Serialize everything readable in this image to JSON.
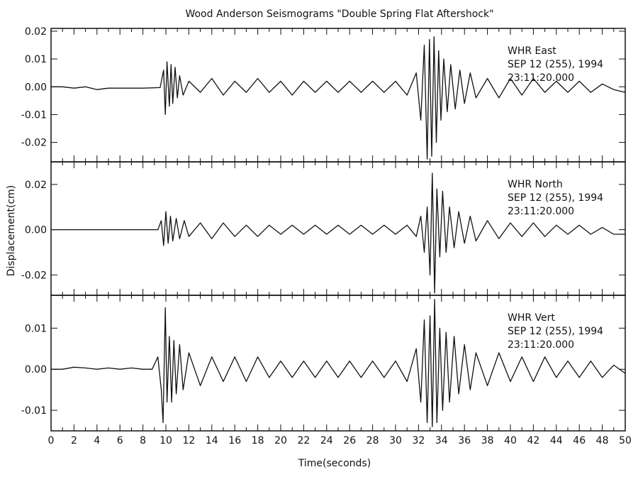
{
  "chart_data": [
    {
      "type": "line",
      "title": "Wood Anderson Seismograms \"Double Spring Flat Aftershock\"",
      "station_line": "WHR   East",
      "date_line": "SEP 12 (255), 1994",
      "time_line": "23:11:20.000",
      "ylabel": "",
      "xlabel": "",
      "xlim": [
        0,
        50
      ],
      "ylim": [
        -0.027,
        0.021
      ],
      "yticks": [
        0.02,
        0.01,
        0.0,
        -0.01,
        -0.02
      ],
      "ytick_labels": [
        "0.02",
        "0.01",
        "0.00",
        "-0.01",
        "-0.02"
      ],
      "grid": false,
      "series": [
        {
          "x": [
            0,
            1,
            2,
            3,
            4,
            5,
            6,
            7,
            8,
            9.5,
            9.8,
            9.95,
            10.1,
            10.3,
            10.45,
            10.6,
            10.8,
            11.0,
            11.2,
            11.5,
            12,
            13,
            14,
            15,
            16,
            17,
            18,
            19,
            20,
            21,
            22,
            23,
            24,
            25,
            26,
            27,
            28,
            29,
            30,
            31,
            31.8,
            32.2,
            32.5,
            32.75,
            32.95,
            33.15,
            33.35,
            33.55,
            33.75,
            33.95,
            34.2,
            34.5,
            34.8,
            35.2,
            35.6,
            36,
            36.5,
            37,
            38,
            39,
            40,
            41,
            42,
            43,
            44,
            45,
            46,
            47,
            48,
            49,
            50
          ],
          "y": [
            0.0,
            0.0,
            -0.0005,
            0.0,
            -0.001,
            -0.0005,
            -0.0005,
            -0.0005,
            -0.0005,
            -0.0003,
            0.006,
            -0.01,
            0.009,
            -0.007,
            0.008,
            -0.006,
            0.007,
            -0.004,
            0.004,
            -0.003,
            0.002,
            -0.002,
            0.003,
            -0.003,
            0.002,
            -0.002,
            0.003,
            -0.002,
            0.002,
            -0.003,
            0.002,
            -0.002,
            0.002,
            -0.002,
            0.002,
            -0.002,
            0.002,
            -0.002,
            0.002,
            -0.003,
            0.005,
            -0.012,
            0.015,
            -0.026,
            0.017,
            -0.025,
            0.018,
            -0.02,
            0.013,
            -0.012,
            0.01,
            -0.009,
            0.008,
            -0.008,
            0.006,
            -0.006,
            0.005,
            -0.004,
            0.003,
            -0.004,
            0.003,
            -0.003,
            0.003,
            -0.002,
            0.002,
            -0.002,
            0.002,
            -0.002,
            0.001,
            -0.001,
            -0.002
          ]
        }
      ]
    },
    {
      "type": "line",
      "title": "",
      "station_line": "WHR   North",
      "date_line": "SEP 12 (255), 1994",
      "time_line": "23:11:20.000",
      "ylabel": "Displacement(cm)",
      "xlabel": "",
      "xlim": [
        0,
        50
      ],
      "ylim": [
        -0.029,
        0.03
      ],
      "yticks": [
        0.02,
        0.0,
        -0.02
      ],
      "ytick_labels": [
        "0.02",
        "0.00",
        "-0.02"
      ],
      "grid": false,
      "series": [
        {
          "x": [
            0,
            1,
            2,
            3,
            4,
            5,
            6,
            7,
            8,
            9.3,
            9.6,
            9.8,
            10.0,
            10.2,
            10.4,
            10.6,
            10.9,
            11.2,
            11.6,
            12,
            13,
            14,
            15,
            16,
            17,
            18,
            19,
            20,
            21,
            22,
            23,
            24,
            25,
            26,
            27,
            28,
            29,
            30,
            31,
            31.8,
            32.2,
            32.5,
            32.75,
            33.0,
            33.2,
            33.4,
            33.6,
            33.85,
            34.1,
            34.4,
            34.7,
            35.1,
            35.5,
            36,
            36.5,
            37,
            38,
            39,
            40,
            41,
            42,
            43,
            44,
            45,
            46,
            47,
            48,
            49,
            50
          ],
          "y": [
            0.0,
            0.0,
            0.0,
            0.0,
            0.0,
            0.0,
            0.0,
            0.0,
            0.0,
            0.0,
            0.004,
            -0.007,
            0.008,
            -0.006,
            0.006,
            -0.005,
            0.005,
            -0.004,
            0.004,
            -0.003,
            0.003,
            -0.004,
            0.003,
            -0.003,
            0.002,
            -0.003,
            0.002,
            -0.002,
            0.002,
            -0.002,
            0.002,
            -0.002,
            0.002,
            -0.002,
            0.002,
            -0.002,
            0.002,
            -0.002,
            0.002,
            -0.003,
            0.006,
            -0.01,
            0.01,
            -0.02,
            0.025,
            -0.028,
            0.018,
            -0.012,
            0.017,
            -0.01,
            0.01,
            -0.008,
            0.008,
            -0.006,
            0.006,
            -0.005,
            0.004,
            -0.004,
            0.003,
            -0.003,
            0.003,
            -0.003,
            0.002,
            -0.002,
            0.002,
            -0.002,
            0.001,
            -0.002,
            -0.002
          ]
        }
      ]
    },
    {
      "type": "line",
      "title": "",
      "station_line": "WHR   Vert",
      "date_line": "SEP 12 (255), 1994",
      "time_line": "23:11:20.000",
      "ylabel": "",
      "xlabel": "Time(seconds)",
      "xlim": [
        0,
        50
      ],
      "ylim": [
        -0.015,
        0.018
      ],
      "yticks": [
        0.01,
        0.0,
        -0.01
      ],
      "ytick_labels": [
        "0.01",
        "0.00",
        "-0.01"
      ],
      "xticks": [
        0,
        2,
        4,
        6,
        8,
        10,
        12,
        14,
        16,
        18,
        20,
        22,
        24,
        26,
        28,
        30,
        32,
        34,
        36,
        38,
        40,
        42,
        44,
        46,
        48,
        50
      ],
      "xtick_labels": [
        "0",
        "2",
        "4",
        "6",
        "8",
        "10",
        "12",
        "14",
        "16",
        "18",
        "20",
        "22",
        "24",
        "26",
        "28",
        "30",
        "32",
        "34",
        "36",
        "38",
        "40",
        "42",
        "44",
        "46",
        "48",
        "50"
      ],
      "grid": false,
      "series": [
        {
          "x": [
            0,
            1,
            2,
            3,
            4,
            5,
            6,
            7,
            8,
            8.8,
            9.3,
            9.6,
            9.75,
            9.95,
            10.1,
            10.3,
            10.5,
            10.7,
            10.9,
            11.2,
            11.5,
            12,
            13,
            14,
            15,
            16,
            17,
            18,
            19,
            20,
            21,
            22,
            23,
            24,
            25,
            26,
            27,
            28,
            29,
            30,
            31,
            31.8,
            32.2,
            32.5,
            32.75,
            33.0,
            33.2,
            33.4,
            33.6,
            33.85,
            34.1,
            34.4,
            34.7,
            35.1,
            35.5,
            36,
            36.5,
            37,
            38,
            39,
            40,
            41,
            42,
            43,
            44,
            45,
            46,
            47,
            48,
            49,
            50
          ],
          "y": [
            0.0,
            0.0,
            0.0005,
            0.0003,
            0.0,
            0.0003,
            0.0,
            0.0003,
            0.0,
            0.0,
            0.003,
            -0.005,
            -0.013,
            0.015,
            -0.008,
            0.008,
            -0.008,
            0.007,
            -0.006,
            0.006,
            -0.005,
            0.004,
            -0.004,
            0.003,
            -0.003,
            0.003,
            -0.003,
            0.003,
            -0.002,
            0.002,
            -0.002,
            0.002,
            -0.002,
            0.002,
            -0.002,
            0.002,
            -0.002,
            0.002,
            -0.002,
            0.002,
            -0.003,
            0.005,
            -0.008,
            0.012,
            -0.013,
            0.013,
            -0.014,
            0.017,
            -0.013,
            0.01,
            -0.01,
            0.009,
            -0.008,
            0.008,
            -0.006,
            0.006,
            -0.005,
            0.004,
            -0.004,
            0.004,
            -0.003,
            0.003,
            -0.003,
            0.003,
            -0.002,
            0.002,
            -0.002,
            0.002,
            -0.002,
            0.001,
            -0.001
          ]
        }
      ]
    }
  ],
  "style": {
    "line_color": "#111111",
    "frame_color": "#111111",
    "background": "#ffffff"
  }
}
